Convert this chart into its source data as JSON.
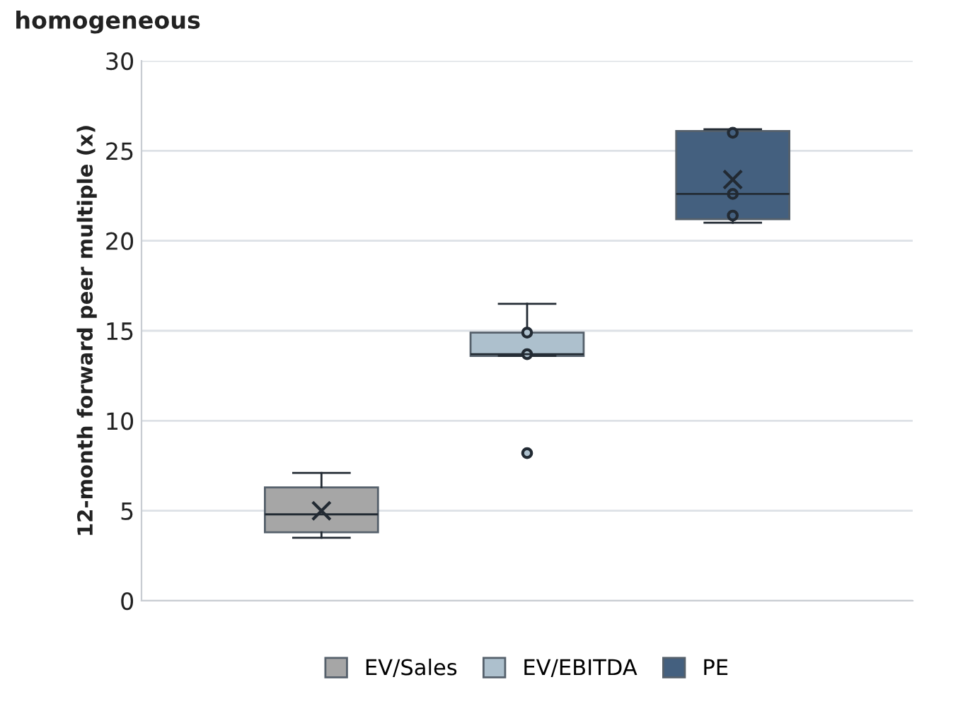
{
  "chart_data": {
    "type": "box",
    "title": "homogeneous",
    "ylabel": "12-month forward peer multiple (x)",
    "categories": [
      null
    ],
    "series": [
      {
        "name": "EV/Sales",
        "color": "#a6a6a6",
        "boxes": [
          {
            "low": 3.5,
            "q1": 3.8,
            "median": 4.8,
            "q3": 6.3,
            "high": 7.1,
            "mean": 5.0
          }
        ]
      },
      {
        "name": "EV/EBITDA",
        "color": "#adc0cd",
        "boxes": [
          {
            "low": 13.6,
            "q1": 13.6,
            "median": 13.7,
            "q3": 14.9,
            "high": 16.5,
            "outliers": [
              14.9,
              13.7,
              8.2
            ]
          }
        ]
      },
      {
        "name": "PE",
        "color": "#44607f",
        "boxes": [
          {
            "low": 21.0,
            "q1": 21.2,
            "median": 22.6,
            "q3": 26.1,
            "high": 26.2,
            "mean": 23.4,
            "outliers": [
              26.0,
              22.6,
              21.4
            ]
          }
        ]
      }
    ],
    "ylim": [
      0,
      30
    ],
    "yticks": [
      0,
      5,
      10,
      15,
      20,
      25,
      30
    ],
    "grid": "y",
    "legend": "bottom"
  }
}
